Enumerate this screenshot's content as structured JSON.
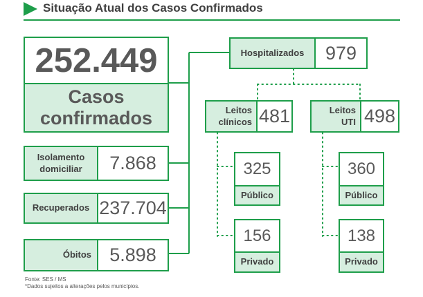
{
  "header": {
    "title": "Situação Atual dos Casos Confirmados"
  },
  "colors": {
    "accent": "#1e9e4a",
    "fill": "#d6eedf",
    "text": "#595959"
  },
  "total": {
    "value": "252.449",
    "label_line1": "Casos",
    "label_line2": "confirmados"
  },
  "left": {
    "isolamento": {
      "label_line1": "Isolamento",
      "label_line2": "domiciliar",
      "value": "7.868"
    },
    "recuperados": {
      "label": "Recuperados",
      "value": "237.704"
    },
    "obitos": {
      "label": "Óbitos",
      "value": "5.898"
    }
  },
  "hospitalizados": {
    "label": "Hospitalizados",
    "value": "979"
  },
  "clinicos": {
    "label_line1": "Leitos",
    "label_line2": "clínicos",
    "value": "481",
    "publico": {
      "value": "325",
      "label": "Público"
    },
    "privado": {
      "value": "156",
      "label": "Privado"
    }
  },
  "uti": {
    "label_line1": "Leitos",
    "label_line2": "UTI",
    "value": "498",
    "publico": {
      "value": "360",
      "label": "Público"
    },
    "privado": {
      "value": "138",
      "label": "Privado"
    }
  },
  "footer": {
    "source": "Fonte: SES / MS",
    "note": "*Dados sujeitos a alterações pelos municípios."
  }
}
